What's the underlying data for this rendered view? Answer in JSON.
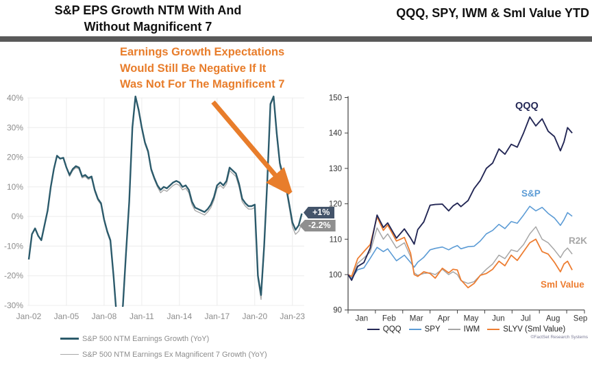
{
  "header": {
    "left_title_line1": "S&P EPS Growth NTM With And",
    "left_title_line2": "Without Magnificent 7",
    "right_title": "QQQ, SPY, IWM & Sml Value YTD"
  },
  "annotation": {
    "line1": "Earnings Growth Expectations",
    "line2": "Would Still Be Negative If It",
    "line3": "Was Not For The Magnificent 7",
    "color": "#E87D2B"
  },
  "left_chart": {
    "end_tags": [
      {
        "text": "+1%",
        "bg": "#44546A"
      },
      {
        "text": "-2.2%",
        "bg": "#8F8F8F"
      }
    ],
    "legend": [
      {
        "label": "S&P 500 NTM Earnings Growth (YoY)",
        "color": "#2B5A6B"
      },
      {
        "label": "S&P 500 NTM Earnings Ex Magnificent 7 Growth (YoY)",
        "color": "#A8A8A8"
      }
    ]
  },
  "right_chart": {
    "inline_labels": [
      {
        "text": "QQQ",
        "color": "#232755"
      },
      {
        "text": "S&P",
        "color": "#5B9BD5"
      },
      {
        "text": "R2K",
        "color": "#A6A6A6"
      },
      {
        "text": "Sml Value",
        "color": "#ED7D31"
      }
    ],
    "legend": [
      {
        "label": "QQQ",
        "color": "#232755"
      },
      {
        "label": "SPY",
        "color": "#5B9BD5"
      },
      {
        "label": "IWM",
        "color": "#A6A6A6"
      },
      {
        "label": "SLYV (Sml Value)",
        "color": "#ED7D31"
      }
    ],
    "attribution": "©FactSet Research Systems"
  },
  "chart_data": [
    {
      "type": "line",
      "title": "S&P EPS Growth NTM With And Without Magnificent 7",
      "xlabel": "",
      "ylabel": "",
      "grid": true,
      "xlim": [
        2002,
        2023.75
      ],
      "ylim": [
        -30,
        40
      ],
      "x_tick_years": [
        2002,
        2005,
        2008,
        2011,
        2014,
        2017,
        2020,
        2023
      ],
      "x_tick_labels": [
        "Jan-02",
        "Jan-05",
        "Jan-08",
        "Jan-11",
        "Jan-14",
        "Jan-17",
        "Jan-20",
        "Jan-23"
      ],
      "y_tick_values": [
        40,
        30,
        20,
        10,
        0,
        -10,
        -20,
        -30
      ],
      "y_tick_labels": [
        "40%",
        "30%",
        "20%",
        "10%",
        "0%",
        "-10%",
        "-20%",
        "-30%"
      ],
      "x0": 2002,
      "dx": 0.25,
      "series": [
        {
          "name": "S&P 500 NTM Earnings Growth (YoY)",
          "color": "#2B5A6B",
          "end_label": "+1%",
          "values": [
            -14.5,
            -6,
            -4,
            -6.5,
            -8,
            -3,
            2,
            10,
            16,
            20.5,
            19.5,
            19.8,
            16.5,
            14,
            16,
            17,
            16.5,
            13.5,
            14,
            13,
            13.5,
            9,
            6,
            4.5,
            -1,
            -5,
            -8,
            -20,
            -34,
            -37,
            -30,
            -12,
            5,
            30,
            40.5,
            36,
            30,
            25,
            22,
            16,
            13,
            10.5,
            9,
            10,
            9.5,
            10.5,
            11.5,
            12,
            11.5,
            10,
            10.5,
            9,
            5,
            3,
            2.5,
            2,
            1.5,
            2.5,
            4,
            6.5,
            10.5,
            11.5,
            10.5,
            12,
            16.5,
            15.5,
            14.5,
            11,
            6,
            4.5,
            3.5,
            3.5,
            4,
            -20,
            -26.5,
            -10,
            12,
            38,
            40.5,
            28,
            18,
            14,
            10,
            4,
            -2,
            -4.5,
            -3,
            1
          ]
        },
        {
          "name": "S&P 500 NTM Earnings Ex Magnificent 7 Growth (YoY)",
          "color": "#A8A8A8",
          "end_label": "-2.2%",
          "values": [
            -14.5,
            -6,
            -4,
            -6.5,
            -8,
            -3,
            2,
            10,
            16,
            20.5,
            19.5,
            19.8,
            16.5,
            13.5,
            15.5,
            16.5,
            16,
            13,
            13.5,
            12.5,
            13,
            8.5,
            5.5,
            4,
            -1.5,
            -5.5,
            -8.5,
            -20.5,
            -34.5,
            -37.5,
            -30.5,
            -12.5,
            4.5,
            29.5,
            40,
            35.5,
            29.5,
            24.5,
            21.5,
            15.5,
            12.5,
            10,
            8,
            9,
            8.5,
            9.5,
            10.5,
            11,
            10.5,
            9,
            9.5,
            8,
            4,
            2,
            1.5,
            1,
            0.5,
            1.5,
            3,
            5.5,
            9.5,
            10.5,
            9.5,
            11,
            15.5,
            14.5,
            13.5,
            10,
            5,
            3.5,
            2.5,
            2.5,
            3,
            -21,
            -28,
            -11,
            11,
            37.5,
            40,
            27,
            17,
            13,
            9,
            3,
            -3.5,
            -6,
            -5,
            -2.2
          ]
        }
      ]
    },
    {
      "type": "line",
      "title": "QQQ, SPY, IWM & Sml Value YTD",
      "xlabel": "",
      "ylabel": "",
      "grid": false,
      "xlim_months": [
        0,
        8.65
      ],
      "ylim": [
        90,
        150
      ],
      "x_tick_labels": [
        "Jan",
        "Feb",
        "Mar",
        "Apr",
        "May",
        "Jun",
        "Jul",
        "Aug",
        "Sep"
      ],
      "y_tick_values": [
        150,
        140,
        130,
        120,
        110,
        100,
        90
      ],
      "x_months": [
        0,
        0.13,
        0.35,
        0.58,
        0.81,
        1.06,
        1.29,
        1.45,
        1.77,
        2.06,
        2.29,
        2.42,
        2.55,
        2.77,
        3.0,
        3.19,
        3.45,
        3.68,
        3.84,
        4.0,
        4.13,
        4.39,
        4.61,
        4.84,
        5.06,
        5.29,
        5.52,
        5.74,
        5.97,
        6.19,
        6.42,
        6.65,
        6.87,
        7.1,
        7.32,
        7.55,
        7.77,
        7.9,
        8.03,
        8.2
      ],
      "series": [
        {
          "name": "QQQ",
          "color": "#232755",
          "values": [
            100,
            98.4,
            102.3,
            103.4,
            107.5,
            116.8,
            113.3,
            114.6,
            110.3,
            112.9,
            110.3,
            108.6,
            112.7,
            114.9,
            119.6,
            119.8,
            119.9,
            118.0,
            119.4,
            120.2,
            119.2,
            120.9,
            124.3,
            126.6,
            130.0,
            131.5,
            135.5,
            134.0,
            136.8,
            136.0,
            140.0,
            144.5,
            142.0,
            144.0,
            140.5,
            139.0,
            135.0,
            137.5,
            141.5,
            140.0
          ]
        },
        {
          "name": "SPY",
          "color": "#5B9BD5",
          "values": [
            100,
            98.9,
            101.4,
            101.9,
            104.6,
            107.7,
            106.5,
            107.3,
            103.9,
            105.5,
            103.4,
            102.1,
            103.5,
            104.9,
            107.0,
            107.4,
            107.8,
            107.0,
            107.7,
            108.2,
            107.3,
            107.9,
            108.0,
            109.5,
            111.5,
            112.5,
            114.2,
            113.0,
            115.0,
            114.5,
            116.8,
            119.3,
            118.0,
            119.0,
            117.3,
            116.0,
            113.9,
            115.5,
            117.5,
            116.5
          ]
        },
        {
          "name": "IWM",
          "color": "#A6A6A6",
          "values": [
            100,
            99.0,
            103.2,
            104.7,
            106.4,
            113.2,
            110.0,
            111.5,
            107.5,
            109.0,
            105.0,
            100.5,
            99.8,
            100.3,
            100.5,
            100.0,
            101.5,
            100.0,
            100.8,
            100.0,
            98.3,
            97.5,
            98.0,
            99.8,
            101.5,
            103.0,
            105.5,
            104.5,
            107.0,
            106.5,
            108.5,
            111.5,
            113.5,
            110.0,
            109.0,
            107.0,
            104.8,
            106.5,
            107.5,
            105.8
          ]
        },
        {
          "name": "SLYV (Sml Value)",
          "color": "#ED7D31",
          "values": [
            100,
            99.5,
            104.5,
            106.5,
            108.5,
            116.3,
            112.5,
            114.0,
            109.5,
            110.5,
            106.0,
            100.0,
            99.5,
            100.8,
            100.3,
            99.0,
            101.8,
            100.5,
            101.5,
            101.3,
            98.5,
            96.3,
            97.5,
            99.8,
            100.3,
            101.5,
            103.8,
            102.5,
            105.5,
            104.0,
            106.5,
            109.0,
            110.0,
            106.5,
            105.8,
            103.5,
            100.8,
            103.0,
            103.8,
            101.3
          ]
        }
      ]
    }
  ]
}
